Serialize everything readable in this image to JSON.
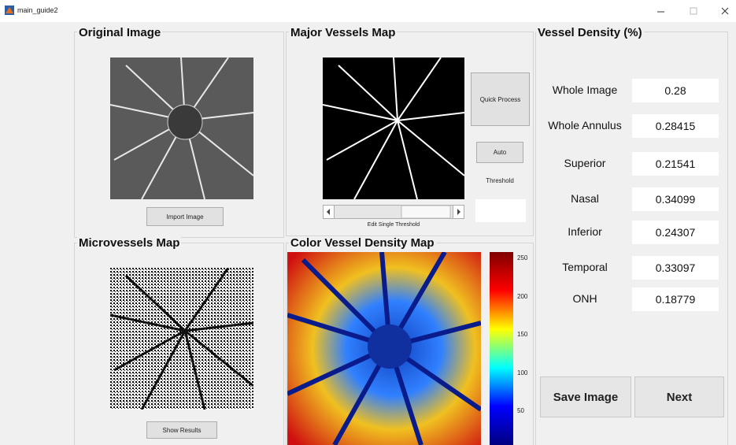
{
  "window": {
    "title": "main_guide2"
  },
  "panels": {
    "original": {
      "title": "Original Image",
      "button": "Import Image"
    },
    "major": {
      "title": "Major Vessels Map",
      "quick_button": "Quick Process",
      "auto_button": "Auto",
      "threshold_label": "Threshold",
      "slider_label": "Edit Single Threshold"
    },
    "micro": {
      "title": "Microvessels Map",
      "button": "Show Results"
    },
    "color": {
      "title": "Color Vessel Density Map",
      "colorbar_ticks": [
        250,
        200,
        150,
        100,
        50
      ]
    },
    "density": {
      "title": "Vessel Density (%)",
      "rows": [
        {
          "label": "Whole Image",
          "value": 0.28
        },
        {
          "label": "Whole Annulus",
          "value": 0.28415
        },
        {
          "label": "Superior",
          "value": 0.21541
        },
        {
          "label": "Nasal",
          "value": 0.34099
        },
        {
          "label": "Inferior",
          "value": 0.24307
        },
        {
          "label": "Temporal",
          "value": 0.33097
        },
        {
          "label": "ONH",
          "value": 0.18779
        }
      ],
      "save_button": "Save Image",
      "next_button": "Next"
    }
  }
}
